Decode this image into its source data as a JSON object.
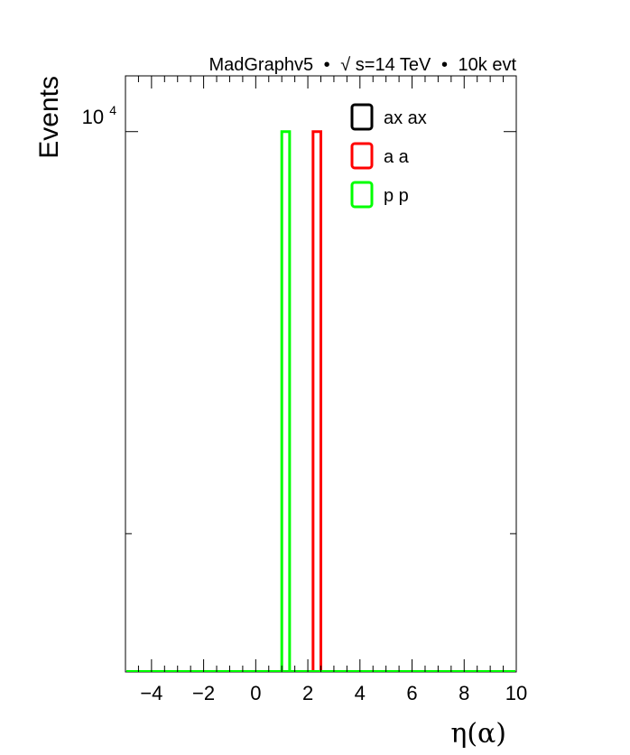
{
  "header": {
    "generator": "MadGraphv5",
    "bullet": "•",
    "sqrt_symbol": "√",
    "energy": "s=14 TeV",
    "events": "10k evt"
  },
  "chart_data": {
    "type": "histogram",
    "xlabel": "η(α)",
    "ylabel": "Events",
    "xlim": [
      -5,
      10
    ],
    "ylog": true,
    "ylim": [
      1150,
      12500
    ],
    "x_ticks": [
      -4,
      -2,
      0,
      2,
      4,
      6,
      8,
      10
    ],
    "x_tick_labels": [
      "−4",
      "−2",
      "0",
      "2",
      "4",
      "6",
      "8",
      "10"
    ],
    "y_tick_label": {
      "base": "10",
      "exponent": "4",
      "value": 10000
    },
    "grid": false,
    "legend_position": "top-right",
    "series": [
      {
        "name": "ax ax",
        "color": "#000000",
        "bins": []
      },
      {
        "name": "a a",
        "color": "#ff0000",
        "bins": [
          {
            "x0": 2.2,
            "x1": 2.5,
            "value": 10000
          }
        ]
      },
      {
        "name": "p p",
        "color": "#00ff00",
        "bins": [
          {
            "x0": 1.0,
            "x1": 1.3,
            "value": 10000
          }
        ]
      }
    ]
  }
}
